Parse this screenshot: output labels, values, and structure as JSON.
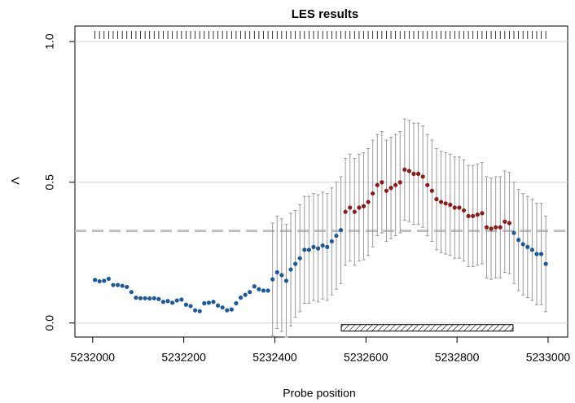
{
  "chart_data": {
    "type": "scatter",
    "title": "LES results",
    "xlabel": "Probe position",
    "ylabel": "Λ",
    "xlim": [
      5231961,
      5233043
    ],
    "ylim": [
      -0.05,
      1.055
    ],
    "xticks": [
      5232000,
      5232200,
      5232400,
      5232600,
      5232800,
      5233000
    ],
    "yticks": [
      {
        "value": 0,
        "label": "0.0"
      },
      0.5,
      {
        "value": 1,
        "label": "1.0"
      }
    ],
    "threshold": 0.327,
    "region": [
      5232546,
      5232923
    ],
    "color": "#1b5a9b",
    "region_color": "#8b1c1c",
    "error_color": "#999999",
    "x": [
      5232005,
      5232015,
      5232025,
      5232035,
      5232045,
      5232055,
      5232065,
      5232075,
      5232085,
      5232095,
      5232105,
      5232115,
      5232125,
      5232135,
      5232145,
      5232155,
      5232165,
      5232175,
      5232185,
      5232195,
      5232205,
      5232215,
      5232225,
      5232235,
      5232245,
      5232255,
      5232265,
      5232275,
      5232285,
      5232295,
      5232305,
      5232315,
      5232325,
      5232335,
      5232345,
      5232355,
      5232365,
      5232375,
      5232385,
      5232395,
      5232405,
      5232415,
      5232425,
      5232435,
      5232445,
      5232455,
      5232465,
      5232475,
      5232485,
      5232495,
      5232505,
      5232515,
      5232525,
      5232535,
      5232545,
      5232555,
      5232565,
      5232575,
      5232585,
      5232595,
      5232605,
      5232615,
      5232625,
      5232635,
      5232645,
      5232655,
      5232665,
      5232675,
      5232685,
      5232695,
      5232705,
      5232715,
      5232725,
      5232735,
      5232745,
      5232755,
      5232765,
      5232775,
      5232785,
      5232795,
      5232805,
      5232815,
      5232825,
      5232835,
      5232845,
      5232855,
      5232865,
      5232875,
      5232885,
      5232895,
      5232905,
      5232915,
      5232925,
      5232935,
      5232945,
      5232955,
      5232965,
      5232975,
      5232985,
      5232995
    ],
    "values": [
      0.153,
      0.148,
      0.15,
      0.157,
      0.135,
      0.135,
      0.132,
      0.128,
      0.11,
      0.09,
      0.088,
      0.088,
      0.087,
      0.088,
      0.085,
      0.075,
      0.078,
      0.072,
      0.08,
      0.083,
      0.065,
      0.06,
      0.045,
      0.042,
      0.07,
      0.072,
      0.075,
      0.062,
      0.055,
      0.045,
      0.048,
      0.07,
      0.09,
      0.1,
      0.11,
      0.13,
      0.12,
      0.115,
      0.115,
      0.155,
      0.18,
      0.17,
      0.15,
      0.19,
      0.21,
      0.23,
      0.26,
      0.26,
      0.27,
      0.265,
      0.275,
      0.27,
      0.29,
      0.31,
      0.33,
      0.395,
      0.41,
      0.395,
      0.41,
      0.415,
      0.43,
      0.46,
      0.49,
      0.5,
      0.47,
      0.48,
      0.49,
      0.5,
      0.545,
      0.54,
      0.53,
      0.53,
      0.52,
      0.49,
      0.47,
      0.44,
      0.43,
      0.425,
      0.42,
      0.41,
      0.41,
      0.4,
      0.38,
      0.38,
      0.385,
      0.39,
      0.34,
      0.335,
      0.34,
      0.34,
      0.36,
      0.355,
      0.32,
      0.295,
      0.28,
      0.27,
      0.26,
      0.245,
      0.245,
      0.21
    ],
    "errors": [
      null,
      null,
      null,
      null,
      null,
      null,
      null,
      null,
      null,
      null,
      null,
      null,
      null,
      null,
      null,
      null,
      null,
      null,
      null,
      null,
      null,
      null,
      null,
      null,
      null,
      null,
      null,
      null,
      null,
      null,
      null,
      null,
      null,
      null,
      null,
      null,
      null,
      null,
      null,
      0.2,
      0.2,
      0.2,
      0.2,
      0.2,
      0.19,
      0.19,
      0.19,
      0.19,
      0.19,
      0.19,
      0.19,
      0.19,
      0.19,
      0.19,
      0.19,
      0.19,
      0.19,
      0.19,
      0.19,
      0.19,
      0.19,
      0.19,
      0.18,
      0.18,
      0.18,
      0.18,
      0.18,
      0.18,
      0.18,
      0.18,
      0.18,
      0.18,
      0.18,
      0.18,
      0.18,
      0.18,
      0.18,
      0.18,
      0.18,
      0.18,
      0.18,
      0.18,
      0.18,
      0.18,
      0.18,
      0.18,
      0.18,
      0.18,
      0.18,
      0.18,
      0.18,
      0.18,
      0.18,
      0.18,
      0.18,
      0.18,
      0.18,
      0.18,
      0.18,
      0.17
    ]
  }
}
